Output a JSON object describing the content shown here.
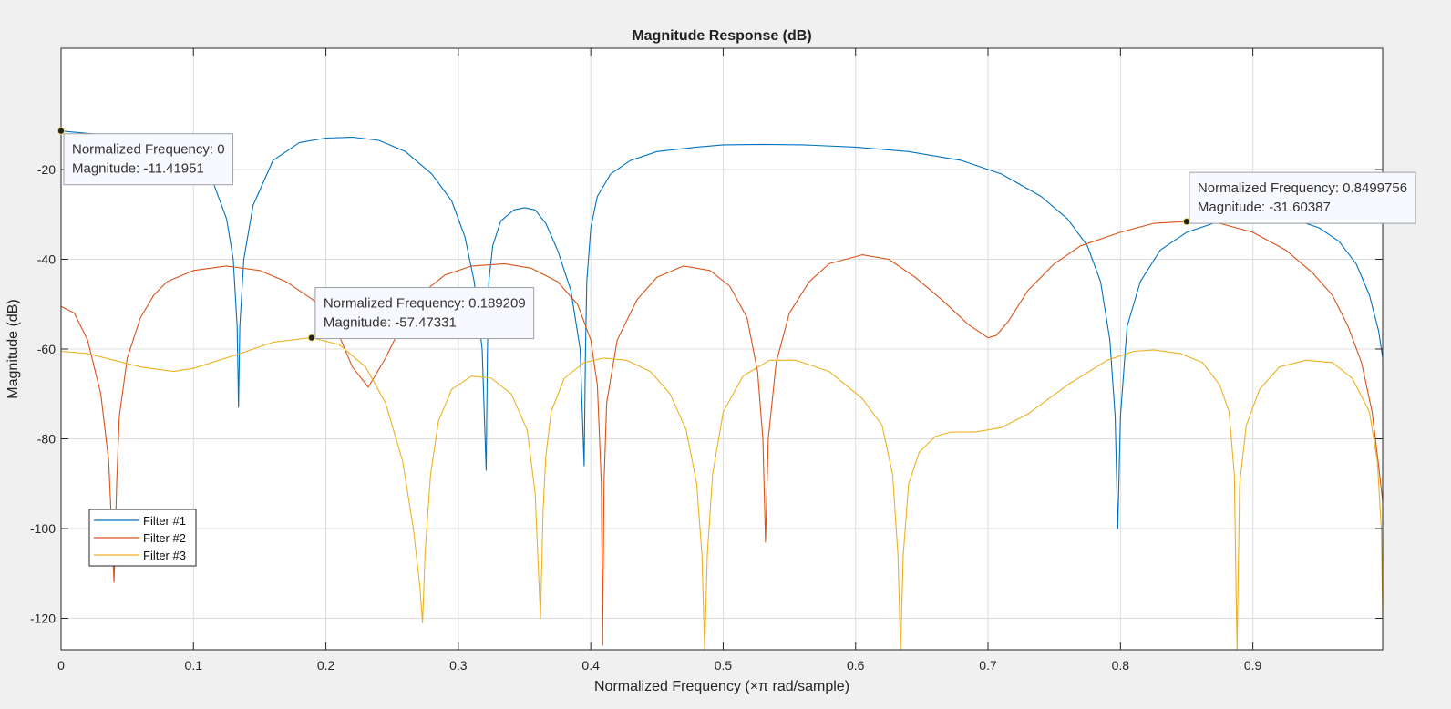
{
  "chart_data": {
    "type": "line",
    "title": "Magnitude Response (dB)",
    "xlabel": "Normalized  Frequency  (×π  rad/sample)",
    "ylabel": "Magnitude (dB)",
    "xlim": [
      0,
      0.998
    ],
    "ylim": [
      -127,
      7
    ],
    "xticks": [
      0,
      0.1,
      0.2,
      0.3,
      0.4,
      0.5,
      0.6,
      0.7,
      0.8,
      0.9
    ],
    "xtick_labels": [
      "0",
      "0.1",
      "0.2",
      "0.3",
      "0.4",
      "0.5",
      "0.6",
      "0.7",
      "0.8",
      "0.9"
    ],
    "yticks": [
      -20,
      -40,
      -60,
      -80,
      -100,
      -120
    ],
    "ytick_labels": [
      "-20",
      "-40",
      "-60",
      "-80",
      "-100",
      "-120"
    ],
    "grid": true,
    "legend_position": "bottom-left",
    "series": [
      {
        "name": "Filter #1",
        "color": "#0072BD",
        "x": [
          0,
          0.04,
          0.08,
          0.1,
          0.115,
          0.125,
          0.13,
          0.133,
          0.134,
          0.135,
          0.138,
          0.145,
          0.16,
          0.18,
          0.2,
          0.22,
          0.24,
          0.26,
          0.28,
          0.295,
          0.305,
          0.312,
          0.318,
          0.321,
          0.322,
          0.323,
          0.326,
          0.332,
          0.342,
          0.35,
          0.358,
          0.366,
          0.375,
          0.385,
          0.392,
          0.395,
          0.396,
          0.397,
          0.4,
          0.405,
          0.415,
          0.43,
          0.45,
          0.48,
          0.5,
          0.53,
          0.56,
          0.6,
          0.64,
          0.68,
          0.71,
          0.74,
          0.76,
          0.775,
          0.785,
          0.792,
          0.796,
          0.798,
          0.8,
          0.805,
          0.815,
          0.83,
          0.85,
          0.87,
          0.89,
          0.91,
          0.93,
          0.95,
          0.965,
          0.978,
          0.988,
          0.995,
          0.998
        ],
        "y": [
          -11.42,
          -12.5,
          -15,
          -18,
          -23,
          -31,
          -40,
          -55,
          -73,
          -55,
          -40,
          -28,
          -18,
          -14,
          -13,
          -12.8,
          -13.5,
          -16,
          -21,
          -27,
          -35,
          -45,
          -60,
          -87,
          -60,
          -45,
          -37,
          -31.5,
          -29,
          -28.5,
          -29,
          -32,
          -38,
          -47,
          -60,
          -86,
          -60,
          -45,
          -33,
          -26,
          -21,
          -18,
          -16,
          -15,
          -14.5,
          -14.4,
          -14.5,
          -15,
          -16,
          -18,
          -21,
          -26,
          -31,
          -37,
          -45,
          -58,
          -75,
          -100,
          -75,
          -55,
          -45,
          -38,
          -34,
          -32,
          -31,
          -30.8,
          -31,
          -33,
          -36,
          -41,
          -48,
          -56,
          -62
        ]
      },
      {
        "name": "Filter #2",
        "color": "#D95319",
        "x": [
          0,
          0.01,
          0.02,
          0.03,
          0.036,
          0.04,
          0.042,
          0.044,
          0.05,
          0.06,
          0.07,
          0.08,
          0.1,
          0.125,
          0.15,
          0.17,
          0.19,
          0.2,
          0.21,
          0.22,
          0.232,
          0.245,
          0.26,
          0.275,
          0.29,
          0.31,
          0.335,
          0.355,
          0.375,
          0.39,
          0.4,
          0.405,
          0.408,
          0.409,
          0.41,
          0.412,
          0.42,
          0.435,
          0.45,
          0.47,
          0.49,
          0.505,
          0.518,
          0.526,
          0.53,
          0.532,
          0.534,
          0.54,
          0.55,
          0.565,
          0.58,
          0.605,
          0.625,
          0.645,
          0.665,
          0.685,
          0.7,
          0.706,
          0.715,
          0.73,
          0.75,
          0.77,
          0.8,
          0.825,
          0.85,
          0.875,
          0.9,
          0.925,
          0.945,
          0.96,
          0.972,
          0.982,
          0.99,
          0.995,
          0.998
        ],
        "y": [
          -50.5,
          -52,
          -58,
          -70,
          -85,
          -112,
          -90,
          -75,
          -62,
          -53,
          -48,
          -45,
          -42.5,
          -41.5,
          -42.5,
          -45,
          -49,
          -52,
          -57,
          -64,
          -68.5,
          -62,
          -53,
          -47,
          -43.5,
          -41.5,
          -41,
          -42,
          -45,
          -50,
          -58,
          -68,
          -90,
          -126,
          -90,
          -72,
          -58,
          -49,
          -44,
          -41.5,
          -42.5,
          -46,
          -53,
          -65,
          -80,
          -103,
          -80,
          -63,
          -52,
          -45,
          -41,
          -39,
          -40,
          -44,
          -49,
          -54.5,
          -57.5,
          -57,
          -54,
          -47,
          -41,
          -37,
          -34,
          -32,
          -31.6,
          -32,
          -34,
          -38,
          -43,
          -48,
          -55,
          -63,
          -74,
          -86,
          -94
        ]
      },
      {
        "name": "Filter #3",
        "color": "#EDB120",
        "x": [
          0,
          0.02,
          0.04,
          0.06,
          0.085,
          0.1,
          0.13,
          0.16,
          0.189,
          0.21,
          0.23,
          0.245,
          0.258,
          0.266,
          0.271,
          0.273,
          0.275,
          0.279,
          0.285,
          0.295,
          0.31,
          0.325,
          0.34,
          0.352,
          0.358,
          0.362,
          0.364,
          0.366,
          0.37,
          0.38,
          0.395,
          0.41,
          0.427,
          0.445,
          0.46,
          0.472,
          0.48,
          0.484,
          0.486,
          0.488,
          0.492,
          0.5,
          0.515,
          0.535,
          0.555,
          0.58,
          0.605,
          0.62,
          0.628,
          0.632,
          0.634,
          0.636,
          0.64,
          0.648,
          0.66,
          0.672,
          0.69,
          0.7,
          0.71,
          0.73,
          0.76,
          0.79,
          0.81,
          0.825,
          0.845,
          0.862,
          0.875,
          0.882,
          0.886,
          0.888,
          0.89,
          0.895,
          0.905,
          0.92,
          0.94,
          0.96,
          0.975,
          0.988,
          0.994,
          0.997,
          0.998
        ],
        "y": [
          -60.5,
          -61,
          -62.5,
          -64,
          -65,
          -64.3,
          -61.5,
          -58.5,
          -57.47,
          -59,
          -64,
          -72,
          -85,
          -100,
          -113,
          -121,
          -105,
          -88,
          -76,
          -69,
          -66,
          -66.5,
          -70,
          -78,
          -92,
          -120,
          -96,
          -84,
          -74,
          -66.5,
          -63,
          -62,
          -62.5,
          -65,
          -70,
          -78,
          -90,
          -106,
          -127,
          -106,
          -88,
          -74,
          -66,
          -62.5,
          -62.5,
          -65,
          -71,
          -77,
          -88,
          -106,
          -127,
          -106,
          -90,
          -83,
          -79.5,
          -78.5,
          -78.5,
          -78,
          -77.5,
          -74.5,
          -68,
          -62.5,
          -60.5,
          -60.2,
          -61,
          -63,
          -68,
          -74,
          -88,
          -127,
          -90,
          -77,
          -69,
          -64,
          -62.5,
          -63,
          -66.5,
          -74,
          -85,
          -100,
          -120
        ]
      }
    ],
    "annotations": [
      {
        "x": 0,
        "y": -11.41951,
        "line1": "Normalized Frequency: 0",
        "line2": "Magnitude: -11.41951"
      },
      {
        "x": 0.189209,
        "y": -57.47331,
        "line1": "Normalized Frequency: 0.189209",
        "line2": "Magnitude: -57.47331"
      },
      {
        "x": 0.8499756,
        "y": -31.60387,
        "line1": "Normalized Frequency: 0.8499756",
        "line2": "Magnitude: -31.60387"
      }
    ]
  }
}
